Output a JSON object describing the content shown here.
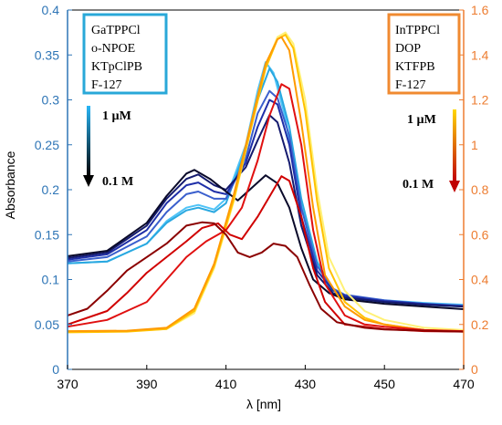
{
  "chart_data": {
    "type": "line",
    "xlabel": "λ [nm]",
    "ylabel": "Absorbance",
    "xlim": [
      370,
      470
    ],
    "ylim_left": [
      0,
      0.4
    ],
    "ylim_right": [
      0,
      1.6
    ],
    "x_ticks": [
      "370",
      "390",
      "410",
      "430",
      "450",
      "470"
    ],
    "y_left_ticks": [
      "0",
      "0.05",
      "0.1",
      "0.15",
      "0.2",
      "0.25",
      "0.3",
      "0.35",
      "0.4"
    ],
    "y_right_ticks": [
      "0",
      "0.2",
      "0.4",
      "0.6",
      "0.8",
      "1",
      "1.2",
      "1.4",
      "1.6"
    ],
    "colors": {
      "left_axis": "#2e75b6",
      "right_axis": "#ed7d31",
      "left_box": "#29a8d8",
      "right_box": "#f08a30"
    },
    "left_legend": [
      "GaTPPCl",
      "o-NPOE",
      "KTpClPB",
      "F-127"
    ],
    "right_legend": [
      "InTPPCl",
      "DOP",
      "KTFPB",
      "F-127"
    ],
    "left_arrow": {
      "top_label": "1 µM",
      "bottom_label": "0.1 M",
      "color_top": "#29b6f6",
      "color_bottom": "#000000"
    },
    "right_arrow": {
      "top_label": "1 µM",
      "bottom_label": "0.1 M",
      "color_top": "#ffd700",
      "color_bottom": "#c00000"
    },
    "series_left": [
      {
        "axis": "left",
        "color": "#4fc3f7",
        "points": [
          [
            370,
            0.118
          ],
          [
            380,
            0.12
          ],
          [
            390,
            0.14
          ],
          [
            395,
            0.165
          ],
          [
            400,
            0.18
          ],
          [
            403,
            0.183
          ],
          [
            407,
            0.178
          ],
          [
            410,
            0.19
          ],
          [
            415,
            0.25
          ],
          [
            418,
            0.31
          ],
          [
            420,
            0.342
          ],
          [
            422,
            0.33
          ],
          [
            425,
            0.28
          ],
          [
            428,
            0.2
          ],
          [
            432,
            0.13
          ],
          [
            436,
            0.09
          ],
          [
            440,
            0.082
          ],
          [
            450,
            0.077
          ],
          [
            460,
            0.074
          ],
          [
            470,
            0.072
          ]
        ]
      },
      {
        "axis": "left",
        "color": "#29a8e0",
        "points": [
          [
            370,
            0.118
          ],
          [
            380,
            0.12
          ],
          [
            390,
            0.14
          ],
          [
            395,
            0.163
          ],
          [
            400,
            0.177
          ],
          [
            403,
            0.18
          ],
          [
            407,
            0.175
          ],
          [
            410,
            0.185
          ],
          [
            415,
            0.245
          ],
          [
            418,
            0.3
          ],
          [
            421,
            0.335
          ],
          [
            423,
            0.32
          ],
          [
            426,
            0.27
          ],
          [
            429,
            0.19
          ],
          [
            433,
            0.12
          ],
          [
            437,
            0.088
          ],
          [
            440,
            0.08
          ],
          [
            450,
            0.075
          ],
          [
            460,
            0.072
          ],
          [
            470,
            0.07
          ]
        ]
      },
      {
        "axis": "left",
        "color": "#3a5fcd",
        "points": [
          [
            370,
            0.12
          ],
          [
            380,
            0.125
          ],
          [
            390,
            0.148
          ],
          [
            395,
            0.175
          ],
          [
            400,
            0.195
          ],
          [
            403,
            0.198
          ],
          [
            407,
            0.19
          ],
          [
            410,
            0.19
          ],
          [
            415,
            0.235
          ],
          [
            418,
            0.285
          ],
          [
            421,
            0.31
          ],
          [
            423,
            0.302
          ],
          [
            426,
            0.26
          ],
          [
            429,
            0.18
          ],
          [
            433,
            0.115
          ],
          [
            437,
            0.09
          ],
          [
            440,
            0.083
          ],
          [
            450,
            0.077
          ],
          [
            460,
            0.073
          ],
          [
            470,
            0.071
          ]
        ]
      },
      {
        "axis": "left",
        "color": "#1f2fa8",
        "points": [
          [
            370,
            0.122
          ],
          [
            380,
            0.128
          ],
          [
            390,
            0.155
          ],
          [
            395,
            0.185
          ],
          [
            400,
            0.205
          ],
          [
            403,
            0.208
          ],
          [
            407,
            0.198
          ],
          [
            410,
            0.195
          ],
          [
            415,
            0.23
          ],
          [
            418,
            0.27
          ],
          [
            421,
            0.3
          ],
          [
            423,
            0.295
          ],
          [
            426,
            0.25
          ],
          [
            429,
            0.17
          ],
          [
            433,
            0.11
          ],
          [
            437,
            0.088
          ],
          [
            440,
            0.082
          ],
          [
            450,
            0.076
          ],
          [
            460,
            0.073
          ],
          [
            470,
            0.07
          ]
        ]
      },
      {
        "axis": "left",
        "color": "#141a6e",
        "points": [
          [
            370,
            0.124
          ],
          [
            380,
            0.13
          ],
          [
            390,
            0.16
          ],
          [
            395,
            0.19
          ],
          [
            400,
            0.212
          ],
          [
            403,
            0.217
          ],
          [
            407,
            0.205
          ],
          [
            410,
            0.2
          ],
          [
            415,
            0.225
          ],
          [
            418,
            0.255
          ],
          [
            421,
            0.283
          ],
          [
            423,
            0.275
          ],
          [
            426,
            0.23
          ],
          [
            429,
            0.16
          ],
          [
            433,
            0.105
          ],
          [
            437,
            0.085
          ],
          [
            440,
            0.08
          ],
          [
            450,
            0.075
          ],
          [
            460,
            0.072
          ],
          [
            470,
            0.07
          ]
        ]
      },
      {
        "axis": "left",
        "color": "#0a0a2a",
        "points": [
          [
            370,
            0.126
          ],
          [
            380,
            0.132
          ],
          [
            390,
            0.163
          ],
          [
            395,
            0.193
          ],
          [
            400,
            0.218
          ],
          [
            402,
            0.222
          ],
          [
            406,
            0.212
          ],
          [
            410,
            0.198
          ],
          [
            413,
            0.188
          ],
          [
            416,
            0.2
          ],
          [
            420,
            0.216
          ],
          [
            423,
            0.207
          ],
          [
            426,
            0.18
          ],
          [
            429,
            0.135
          ],
          [
            432,
            0.1
          ],
          [
            436,
            0.085
          ],
          [
            440,
            0.078
          ],
          [
            450,
            0.073
          ],
          [
            460,
            0.07
          ],
          [
            470,
            0.067
          ]
        ]
      }
    ],
    "series_right": [
      {
        "axis": "right",
        "color": "#fff176",
        "points": [
          [
            370,
            0.17
          ],
          [
            385,
            0.17
          ],
          [
            395,
            0.18
          ],
          [
            402,
            0.25
          ],
          [
            407,
            0.45
          ],
          [
            412,
            0.75
          ],
          [
            416,
            1.05
          ],
          [
            420,
            1.35
          ],
          [
            423,
            1.48
          ],
          [
            425,
            1.5
          ],
          [
            427,
            1.45
          ],
          [
            430,
            1.2
          ],
          [
            433,
            0.8
          ],
          [
            436,
            0.5
          ],
          [
            440,
            0.35
          ],
          [
            445,
            0.26
          ],
          [
            450,
            0.22
          ],
          [
            460,
            0.185
          ],
          [
            470,
            0.175
          ]
        ]
      },
      {
        "axis": "right",
        "color": "#ffc200",
        "points": [
          [
            370,
            0.165
          ],
          [
            385,
            0.168
          ],
          [
            395,
            0.18
          ],
          [
            402,
            0.26
          ],
          [
            407,
            0.46
          ],
          [
            412,
            0.76
          ],
          [
            416,
            1.05
          ],
          [
            420,
            1.34
          ],
          [
            423,
            1.47
          ],
          [
            425,
            1.49
          ],
          [
            427,
            1.43
          ],
          [
            430,
            1.15
          ],
          [
            433,
            0.75
          ],
          [
            436,
            0.45
          ],
          [
            440,
            0.3
          ],
          [
            445,
            0.23
          ],
          [
            450,
            0.2
          ],
          [
            460,
            0.175
          ],
          [
            470,
            0.17
          ]
        ]
      },
      {
        "axis": "right",
        "color": "#ff9a00",
        "points": [
          [
            370,
            0.17
          ],
          [
            385,
            0.172
          ],
          [
            395,
            0.185
          ],
          [
            402,
            0.27
          ],
          [
            407,
            0.47
          ],
          [
            412,
            0.78
          ],
          [
            416,
            1.07
          ],
          [
            420,
            1.36
          ],
          [
            423,
            1.47
          ],
          [
            424,
            1.48
          ],
          [
            426,
            1.42
          ],
          [
            429,
            1.1
          ],
          [
            432,
            0.72
          ],
          [
            435,
            0.42
          ],
          [
            440,
            0.28
          ],
          [
            445,
            0.22
          ],
          [
            450,
            0.2
          ],
          [
            460,
            0.175
          ],
          [
            470,
            0.168
          ]
        ]
      },
      {
        "axis": "right",
        "color": "#e01010",
        "points": [
          [
            370,
            0.19
          ],
          [
            380,
            0.22
          ],
          [
            390,
            0.3
          ],
          [
            395,
            0.4
          ],
          [
            400,
            0.5
          ],
          [
            405,
            0.57
          ],
          [
            410,
            0.62
          ],
          [
            414,
            0.72
          ],
          [
            418,
            0.93
          ],
          [
            421,
            1.13
          ],
          [
            424,
            1.27
          ],
          [
            426,
            1.25
          ],
          [
            429,
            1.0
          ],
          [
            432,
            0.62
          ],
          [
            435,
            0.38
          ],
          [
            440,
            0.24
          ],
          [
            445,
            0.2
          ],
          [
            450,
            0.19
          ],
          [
            460,
            0.175
          ],
          [
            470,
            0.17
          ]
        ]
      },
      {
        "axis": "right",
        "color": "#d00000",
        "points": [
          [
            370,
            0.2
          ],
          [
            380,
            0.26
          ],
          [
            385,
            0.34
          ],
          [
            390,
            0.43
          ],
          [
            395,
            0.5
          ],
          [
            400,
            0.57
          ],
          [
            404,
            0.63
          ],
          [
            408,
            0.65
          ],
          [
            411,
            0.6
          ],
          [
            414,
            0.58
          ],
          [
            418,
            0.68
          ],
          [
            422,
            0.8
          ],
          [
            424,
            0.86
          ],
          [
            426,
            0.84
          ],
          [
            429,
            0.68
          ],
          [
            432,
            0.45
          ],
          [
            435,
            0.3
          ],
          [
            440,
            0.2
          ],
          [
            450,
            0.18
          ],
          [
            460,
            0.17
          ],
          [
            470,
            0.168
          ]
        ]
      },
      {
        "axis": "right",
        "color": "#8b0000",
        "points": [
          [
            370,
            0.24
          ],
          [
            375,
            0.27
          ],
          [
            380,
            0.35
          ],
          [
            385,
            0.44
          ],
          [
            390,
            0.5
          ],
          [
            395,
            0.56
          ],
          [
            400,
            0.64
          ],
          [
            404,
            0.655
          ],
          [
            407,
            0.65
          ],
          [
            410,
            0.6
          ],
          [
            413,
            0.52
          ],
          [
            416,
            0.5
          ],
          [
            419,
            0.52
          ],
          [
            422,
            0.56
          ],
          [
            425,
            0.55
          ],
          [
            428,
            0.5
          ],
          [
            431,
            0.38
          ],
          [
            434,
            0.27
          ],
          [
            438,
            0.21
          ],
          [
            445,
            0.185
          ],
          [
            450,
            0.178
          ],
          [
            460,
            0.172
          ],
          [
            470,
            0.168
          ]
        ]
      }
    ]
  }
}
